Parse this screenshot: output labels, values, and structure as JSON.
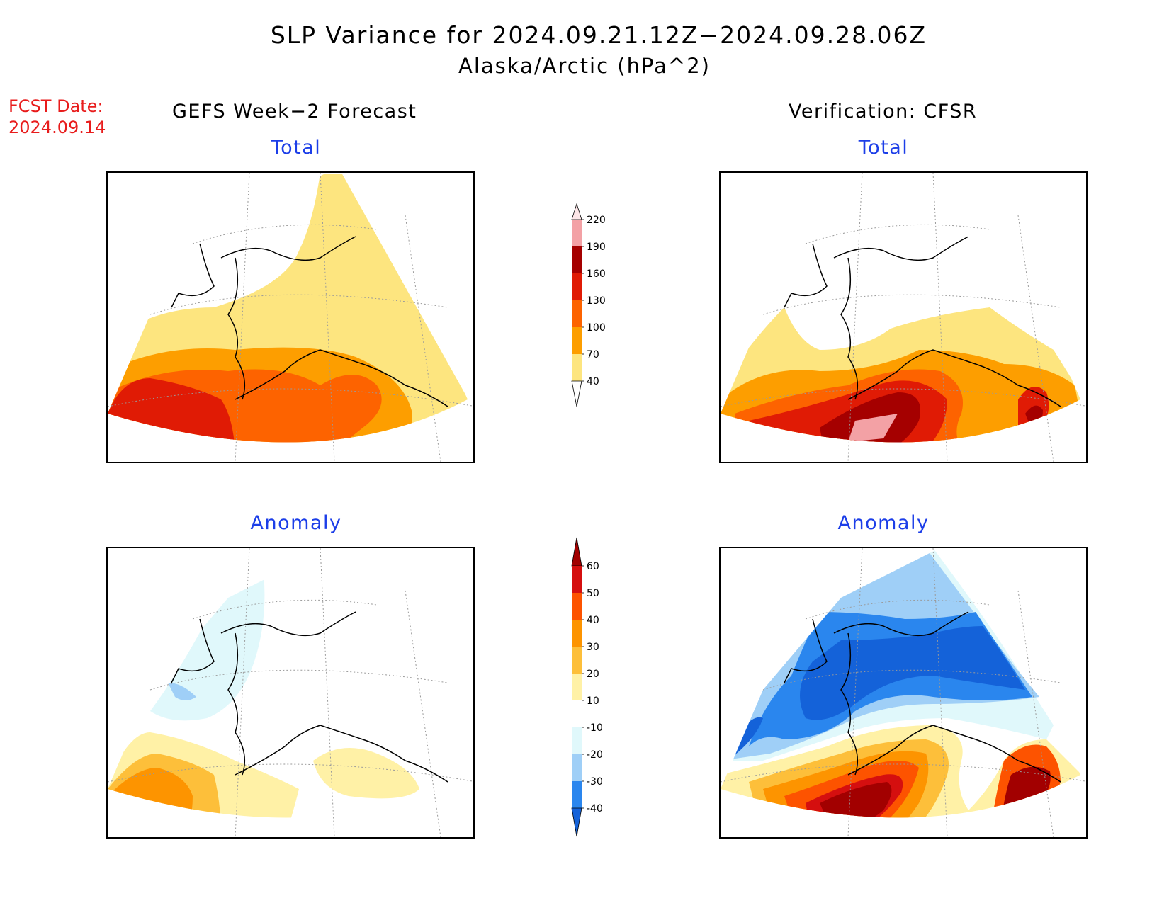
{
  "title": "SLP Variance for 2024.09.21.12Z−2024.09.28.06Z",
  "subtitle": "Alaska/Arctic (hPa^2)",
  "fcst_date_label": "FCST Date:",
  "fcst_date_value": "2024.09.14",
  "left_column_title": "GEFS Week−2 Forecast",
  "right_column_title": "Verification: CFSR",
  "panels": {
    "forecast_total": {
      "title": "Total"
    },
    "verification_total": {
      "title": "Total"
    },
    "forecast_anomaly": {
      "title": "Anomaly"
    },
    "verification_anomaly": {
      "title": "Anomaly"
    }
  },
  "colorbars": {
    "total": {
      "levels": [
        "40",
        "70",
        "100",
        "130",
        "160",
        "190",
        "220"
      ],
      "colors": [
        "#fde57f",
        "#fd9e00",
        "#fd6300",
        "#e01b05",
        "#a50000",
        "#f3a1a5",
        "#fde6e8"
      ]
    },
    "anomaly": {
      "levels": [
        "-40",
        "-30",
        "-20",
        "-10",
        "10",
        "20",
        "30",
        "40",
        "50",
        "60"
      ],
      "colors": [
        "#1462d9",
        "#2a86ee",
        "#9fcff7",
        "#e0f8fb",
        "#ffffff",
        "#fff1a6",
        "#fdbf3a",
        "#fd9400",
        "#fd5300",
        "#d50f0f",
        "#a20000"
      ]
    }
  }
}
